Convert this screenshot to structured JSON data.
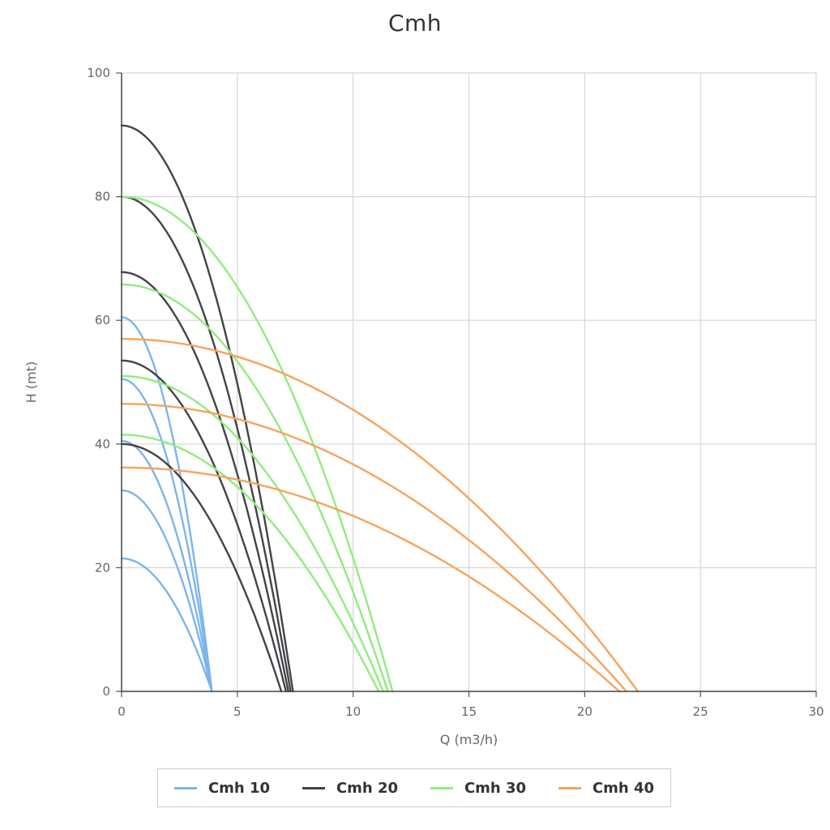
{
  "chart_data": {
    "type": "line",
    "title": "Cmh",
    "xlabel": "Q (m3/h)",
    "ylabel": "H (mt)",
    "xlim": [
      0,
      30
    ],
    "ylim": [
      0,
      100
    ],
    "x_ticks": [
      0,
      5,
      10,
      15,
      20,
      25,
      30
    ],
    "y_ticks": [
      0,
      20,
      40,
      60,
      80,
      100
    ],
    "grid": true,
    "legend_position": "bottom",
    "series": [
      {
        "name": "Cmh 10",
        "color": "#7cb5ec",
        "curves": [
          {
            "shutoff_head": 60.5,
            "max_flow": 3.9
          },
          {
            "shutoff_head": 50.5,
            "max_flow": 3.9
          },
          {
            "shutoff_head": 40.5,
            "max_flow": 3.9
          },
          {
            "shutoff_head": 32.5,
            "max_flow": 3.9
          },
          {
            "shutoff_head": 21.5,
            "max_flow": 3.9
          }
        ]
      },
      {
        "name": "Cmh 20",
        "color": "#434348",
        "curves": [
          {
            "shutoff_head": 91.5,
            "max_flow": 7.4
          },
          {
            "shutoff_head": 80.0,
            "max_flow": 7.3
          },
          {
            "shutoff_head": 67.8,
            "max_flow": 7.2
          },
          {
            "shutoff_head": 53.5,
            "max_flow": 7.1
          },
          {
            "shutoff_head": 40.0,
            "max_flow": 6.9
          }
        ]
      },
      {
        "name": "Cmh 30",
        "color": "#90ed7d",
        "curves": [
          {
            "shutoff_head": 80.0,
            "max_flow": 11.7
          },
          {
            "shutoff_head": 65.8,
            "max_flow": 11.5
          },
          {
            "shutoff_head": 51.0,
            "max_flow": 11.3
          },
          {
            "shutoff_head": 41.5,
            "max_flow": 11.1
          }
        ]
      },
      {
        "name": "Cmh 40",
        "color": "#f7a35c",
        "curves": [
          {
            "shutoff_head": 57.0,
            "max_flow": 22.3
          },
          {
            "shutoff_head": 46.5,
            "max_flow": 21.8
          },
          {
            "shutoff_head": 36.2,
            "max_flow": 21.5
          }
        ]
      }
    ]
  }
}
